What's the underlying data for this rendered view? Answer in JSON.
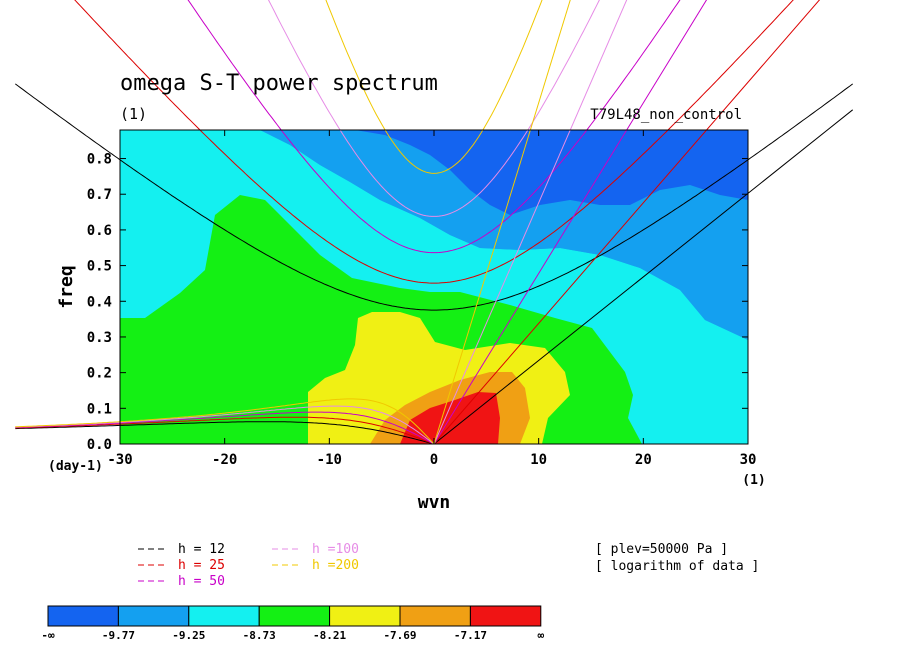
{
  "chart_data": {
    "type": "heatmap",
    "title": "omega S-T power spectrum",
    "title_units": "(1)",
    "dataset_label": "T79L48_non_control",
    "xlabel": "wvn",
    "ylabel": "freq",
    "x_units": "(1)",
    "y_units": "(day-1)",
    "xlim": [
      -30,
      30
    ],
    "ylim": [
      0,
      0.88
    ],
    "x_ticks": [
      "-30",
      "-20",
      "-10",
      "0",
      "10",
      "20",
      "30"
    ],
    "y_ticks": [
      "0.0",
      "0.1",
      "0.2",
      "0.3",
      "0.4",
      "0.5",
      "0.6",
      "0.7",
      "0.8"
    ],
    "levels": [
      "-9.77",
      "-9.25",
      "-8.73",
      "-8.21",
      "-7.69",
      "-7.17"
    ],
    "colorbar_end_labels": [
      "-∞",
      "∞"
    ],
    "colors": [
      "#1464f0",
      "#14a0f0",
      "#14f0f0",
      "#14f014",
      "#f0f014",
      "#f0a014",
      "#f01414"
    ],
    "dispersion_curves": [
      {
        "label": "h = 12",
        "equivalent_depth": 12,
        "color": "#000000"
      },
      {
        "label": "h = 25",
        "equivalent_depth": 25,
        "color": "#dc0000"
      },
      {
        "label": "h = 50",
        "equivalent_depth": 50,
        "color": "#c800c8"
      },
      {
        "label": "h =100",
        "equivalent_depth": 100,
        "color": "#e68ce6"
      },
      {
        "label": "h =200",
        "equivalent_depth": 200,
        "color": "#f0c800"
      }
    ],
    "info_lines": [
      "[ plev=50000 Pa ]",
      "[ logarithm of data ]"
    ]
  }
}
